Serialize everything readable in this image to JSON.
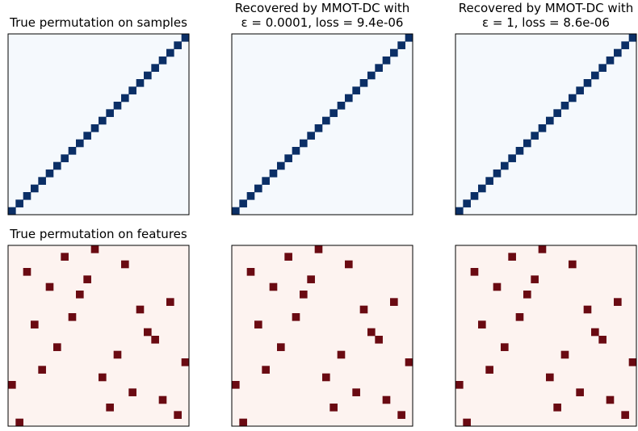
{
  "colors": {
    "top_bg": "#f5f9fd",
    "top_cell": "#0b2f66",
    "bottom_bg": "#fdf3f0",
    "bottom_cell": "#6a0a12",
    "frame": "#000000"
  },
  "chart_data": [
    {
      "type": "heatmap",
      "row": "samples",
      "grid_size": 24,
      "title_lines": [
        "True permutation on samples"
      ],
      "cells": [
        [
          0,
          0
        ],
        [
          1,
          1
        ],
        [
          2,
          2
        ],
        [
          3,
          3
        ],
        [
          4,
          4
        ],
        [
          5,
          5
        ],
        [
          6,
          6
        ],
        [
          7,
          7
        ],
        [
          8,
          8
        ],
        [
          9,
          9
        ],
        [
          10,
          10
        ],
        [
          11,
          11
        ],
        [
          12,
          12
        ],
        [
          13,
          13
        ],
        [
          14,
          14
        ],
        [
          15,
          15
        ],
        [
          16,
          16
        ],
        [
          17,
          17
        ],
        [
          18,
          18
        ],
        [
          19,
          19
        ],
        [
          20,
          20
        ],
        [
          21,
          21
        ],
        [
          22,
          22
        ],
        [
          23,
          23
        ]
      ]
    },
    {
      "type": "heatmap",
      "row": "samples",
      "grid_size": 24,
      "title_lines": [
        "Recovered by MMOT-DC with",
        "ε = 0.0001, loss = 9.4e-06"
      ],
      "cells": [
        [
          0,
          0
        ],
        [
          1,
          1
        ],
        [
          2,
          2
        ],
        [
          3,
          3
        ],
        [
          4,
          4
        ],
        [
          5,
          5
        ],
        [
          6,
          6
        ],
        [
          7,
          7
        ],
        [
          8,
          8
        ],
        [
          9,
          9
        ],
        [
          10,
          10
        ],
        [
          11,
          11
        ],
        [
          12,
          12
        ],
        [
          13,
          13
        ],
        [
          14,
          14
        ],
        [
          15,
          15
        ],
        [
          16,
          16
        ],
        [
          17,
          17
        ],
        [
          18,
          18
        ],
        [
          19,
          19
        ],
        [
          20,
          20
        ],
        [
          21,
          21
        ],
        [
          22,
          22
        ],
        [
          23,
          23
        ]
      ]
    },
    {
      "type": "heatmap",
      "row": "samples",
      "grid_size": 24,
      "title_lines": [
        "Recovered by MMOT-DC with",
        "ε = 1, loss = 8.6e-06"
      ],
      "cells": [
        [
          0,
          0
        ],
        [
          1,
          1
        ],
        [
          2,
          2
        ],
        [
          3,
          3
        ],
        [
          4,
          4
        ],
        [
          5,
          5
        ],
        [
          6,
          6
        ],
        [
          7,
          7
        ],
        [
          8,
          8
        ],
        [
          9,
          9
        ],
        [
          10,
          10
        ],
        [
          11,
          11
        ],
        [
          12,
          12
        ],
        [
          13,
          13
        ],
        [
          14,
          14
        ],
        [
          15,
          15
        ],
        [
          16,
          16
        ],
        [
          17,
          17
        ],
        [
          18,
          18
        ],
        [
          19,
          19
        ],
        [
          20,
          20
        ],
        [
          21,
          21
        ],
        [
          22,
          22
        ],
        [
          23,
          23
        ]
      ]
    },
    {
      "type": "heatmap",
      "row": "features",
      "grid_size": 24,
      "title_lines": [
        "True permutation on features"
      ],
      "cells": [
        [
          0,
          1
        ],
        [
          1,
          22
        ],
        [
          2,
          13
        ],
        [
          3,
          20
        ],
        [
          4,
          16
        ],
        [
          5,
          0
        ],
        [
          6,
          12
        ],
        [
          7,
          4
        ],
        [
          8,
          23
        ],
        [
          9,
          14
        ],
        [
          10,
          6
        ],
        [
          11,
          19
        ],
        [
          12,
          18
        ],
        [
          13,
          3
        ],
        [
          14,
          8
        ],
        [
          15,
          17
        ],
        [
          16,
          21
        ],
        [
          17,
          9
        ],
        [
          18,
          5
        ],
        [
          19,
          10
        ],
        [
          20,
          2
        ],
        [
          21,
          15
        ],
        [
          22,
          7
        ],
        [
          23,
          11
        ]
      ]
    },
    {
      "type": "heatmap",
      "row": "features",
      "grid_size": 24,
      "title_lines": [],
      "cells": [
        [
          0,
          1
        ],
        [
          1,
          22
        ],
        [
          2,
          13
        ],
        [
          3,
          20
        ],
        [
          4,
          16
        ],
        [
          5,
          0
        ],
        [
          6,
          12
        ],
        [
          7,
          4
        ],
        [
          8,
          23
        ],
        [
          9,
          14
        ],
        [
          10,
          6
        ],
        [
          11,
          19
        ],
        [
          12,
          18
        ],
        [
          13,
          3
        ],
        [
          14,
          8
        ],
        [
          15,
          17
        ],
        [
          16,
          21
        ],
        [
          17,
          9
        ],
        [
          18,
          5
        ],
        [
          19,
          10
        ],
        [
          20,
          2
        ],
        [
          21,
          15
        ],
        [
          22,
          7
        ],
        [
          23,
          11
        ]
      ]
    },
    {
      "type": "heatmap",
      "row": "features",
      "grid_size": 24,
      "title_lines": [],
      "cells": [
        [
          0,
          1
        ],
        [
          1,
          22
        ],
        [
          2,
          13
        ],
        [
          3,
          20
        ],
        [
          4,
          16
        ],
        [
          5,
          0
        ],
        [
          6,
          12
        ],
        [
          7,
          4
        ],
        [
          8,
          23
        ],
        [
          9,
          14
        ],
        [
          10,
          6
        ],
        [
          11,
          19
        ],
        [
          12,
          18
        ],
        [
          13,
          3
        ],
        [
          14,
          8
        ],
        [
          15,
          17
        ],
        [
          16,
          21
        ],
        [
          17,
          9
        ],
        [
          18,
          5
        ],
        [
          19,
          10
        ],
        [
          20,
          2
        ],
        [
          21,
          15
        ],
        [
          22,
          7
        ],
        [
          23,
          11
        ]
      ]
    }
  ]
}
